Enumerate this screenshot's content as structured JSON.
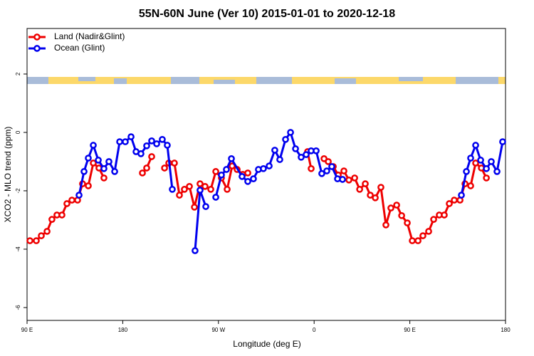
{
  "chart_data": {
    "type": "line",
    "title": "55N-60N June (Ver 10)   2015-01-01 to 2020-12-18",
    "x_label": "Longitude (deg E)",
    "y_label": "XCO2 - MLO trend (ppm)",
    "xlim": [
      90,
      540
    ],
    "ylim": [
      -6.44,
      3.56
    ],
    "xticks": [
      {
        "value": 90,
        "label": "90 E"
      },
      180,
      {
        "value": 270,
        "label": "90 W"
      },
      {
        "value": 360,
        "label": "0"
      },
      {
        "value": 450,
        "label": "90 E"
      },
      {
        "value": 540,
        "label": "180"
      }
    ],
    "yticks": [
      -6,
      -4,
      -2,
      0,
      2
    ],
    "legend": "top-left",
    "series": [
      {
        "name": "Land (Nadir&Glint)",
        "color": "#ee0000",
        "x": [
          92.7,
          98.7,
          103.4,
          108.8,
          113.4,
          118.1,
          122.8,
          127.5,
          132.2,
          137.5,
          142.2,
          147.6,
          152.3,
          157.6,
          162.3,
          null,
          198.5,
          202.5,
          207.2,
          null,
          219.3,
          223.3,
          228.6,
          233.3,
          238.0,
          242.7,
          247.4,
          252.7,
          257.4,
          262.8,
          267.5,
          272.8,
          278.2,
          282.9,
          287.6,
          292.9,
          297.6,
          null,
          353.8,
          357.2,
          null,
          369.3,
          373.3,
          378.0,
          382.7,
          388.0,
          392.7,
          398.1,
          402.8,
          408.1,
          412.8,
          417.5,
          422.8,
          427.5,
          432.2,
          437.6,
          442.3,
          447.6,
          452.3,
          457.7,
          462.3,
          467.7,
          472.4,
          477.7,
          482.4,
          487.1,
          491.8,
          497.2,
          501.9,
          507.2,
          511.9,
          517.3,
          522.0
        ],
        "values": [
          -3.71,
          -3.71,
          -3.54,
          -3.39,
          -2.98,
          -2.83,
          -2.83,
          -2.44,
          -2.32,
          -2.32,
          -1.76,
          -1.83,
          -1.05,
          -1.22,
          -1.56,
          null,
          -1.39,
          -1.22,
          -0.83,
          null,
          -1.22,
          -1.05,
          -1.05,
          -2.15,
          -1.95,
          -1.85,
          -2.56,
          -1.76,
          -1.85,
          -1.95,
          -1.34,
          -1.56,
          -1.95,
          -1.15,
          -1.27,
          -1.44,
          -1.39,
          null,
          -0.66,
          -1.24,
          null,
          -0.9,
          -1.0,
          -1.17,
          -1.46,
          -1.32,
          -1.63,
          -1.56,
          -1.95,
          -1.76,
          -2.15,
          -2.24,
          -1.88,
          -3.17,
          -2.59,
          -2.49,
          -2.85,
          -3.1,
          -3.71,
          -3.71,
          -3.54,
          -3.39,
          -2.98,
          -2.83,
          -2.83,
          -2.44,
          -2.32,
          -2.32,
          -1.76,
          -1.83,
          -1.05,
          -1.22,
          -1.56
        ]
      },
      {
        "name": "Ocean (Glint)",
        "color": "#0000ee",
        "x": [
          138.9,
          143.6,
          147.6,
          152.3,
          157.0,
          162.3,
          167.0,
          172.4,
          177.1,
          182.4,
          187.8,
          192.5,
          197.1,
          202.5,
          207.2,
          211.9,
          217.2,
          221.9,
          226.6,
          null,
          248.0,
          252.7,
          258.1,
          null,
          267.5,
          272.8,
          277.5,
          282.2,
          292.2,
          297.6,
          302.9,
          307.6,
          312.3,
          317.7,
          323.0,
          327.7,
          333.1,
          337.8,
          342.5,
          347.8,
          352.5,
          357.2,
          361.9,
          367.2,
          371.9,
          376.6,
          382.0,
          386.7,
          null,
          498.5,
          503.2,
          507.2,
          511.9,
          516.6,
          522.0,
          526.6,
          532.0,
          537.3
        ],
        "values": [
          -2.15,
          -1.34,
          -0.88,
          -0.44,
          -0.95,
          -1.24,
          -1.0,
          -1.34,
          -0.32,
          -0.32,
          -0.15,
          -0.66,
          -0.73,
          -0.46,
          -0.29,
          -0.39,
          -0.24,
          -0.44,
          -1.95,
          null,
          -4.05,
          -1.98,
          -2.54,
          null,
          -2.22,
          -1.46,
          -1.27,
          -0.9,
          -1.51,
          -1.68,
          -1.59,
          -1.27,
          -1.24,
          -1.15,
          -0.61,
          -0.93,
          -0.24,
          0.0,
          -0.56,
          -0.85,
          -0.76,
          -0.63,
          -0.63,
          -1.41,
          -1.32,
          -1.17,
          -1.59,
          -1.61,
          null,
          -2.15,
          -1.34,
          -0.88,
          -0.44,
          -0.95,
          -1.24,
          -1.0,
          -1.34,
          -0.32
        ]
      }
    ]
  }
}
